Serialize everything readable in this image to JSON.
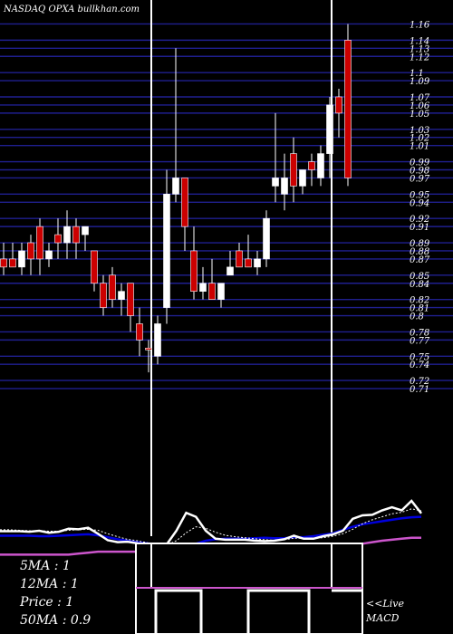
{
  "header": "NASDAQ OPXA bullkhan.com",
  "chart_data": {
    "type": "candlestick",
    "ylim": [
      0.7,
      1.165
    ],
    "y_ticks": [
      0.71,
      0.72,
      0.74,
      0.75,
      0.77,
      0.78,
      0.8,
      0.81,
      0.82,
      0.84,
      0.85,
      0.87,
      0.88,
      0.89,
      0.91,
      0.92,
      0.94,
      0.95,
      0.97,
      0.98,
      0.99,
      1.01,
      1.02,
      1.03,
      1.05,
      1.06,
      1.07,
      1.09,
      1.1,
      1.12,
      1.13,
      1.14,
      1.16
    ],
    "candles": [
      {
        "o": 0.87,
        "h": 0.89,
        "l": 0.85,
        "c": 0.86,
        "up": false
      },
      {
        "o": 0.87,
        "h": 0.89,
        "l": 0.86,
        "c": 0.86,
        "up": false
      },
      {
        "o": 0.86,
        "h": 0.89,
        "l": 0.85,
        "c": 0.88,
        "up": true
      },
      {
        "o": 0.89,
        "h": 0.9,
        "l": 0.85,
        "c": 0.87,
        "up": false
      },
      {
        "o": 0.91,
        "h": 0.92,
        "l": 0.85,
        "c": 0.87,
        "up": false
      },
      {
        "o": 0.87,
        "h": 0.89,
        "l": 0.86,
        "c": 0.88,
        "up": true
      },
      {
        "o": 0.9,
        "h": 0.92,
        "l": 0.87,
        "c": 0.89,
        "up": false
      },
      {
        "o": 0.89,
        "h": 0.93,
        "l": 0.87,
        "c": 0.91,
        "up": true
      },
      {
        "o": 0.91,
        "h": 0.92,
        "l": 0.87,
        "c": 0.89,
        "up": false
      },
      {
        "o": 0.9,
        "h": 0.91,
        "l": 0.88,
        "c": 0.91,
        "up": true
      },
      {
        "o": 0.88,
        "h": 0.88,
        "l": 0.83,
        "c": 0.84,
        "up": false
      },
      {
        "o": 0.84,
        "h": 0.85,
        "l": 0.8,
        "c": 0.81,
        "up": false
      },
      {
        "o": 0.85,
        "h": 0.86,
        "l": 0.81,
        "c": 0.82,
        "up": false
      },
      {
        "o": 0.83,
        "h": 0.84,
        "l": 0.8,
        "c": 0.82,
        "up": true
      },
      {
        "o": 0.84,
        "h": 0.84,
        "l": 0.78,
        "c": 0.8,
        "up": false
      },
      {
        "o": 0.79,
        "h": 0.81,
        "l": 0.75,
        "c": 0.77,
        "up": false
      },
      {
        "o": 0.76,
        "h": 0.77,
        "l": 0.73,
        "c": 0.76,
        "up": false
      },
      {
        "o": 0.75,
        "h": 0.8,
        "l": 0.74,
        "c": 0.79,
        "up": true
      },
      {
        "o": 0.81,
        "h": 0.98,
        "l": 0.79,
        "c": 0.95,
        "up": true
      },
      {
        "o": 0.95,
        "h": 1.13,
        "l": 0.94,
        "c": 0.97,
        "up": true
      },
      {
        "o": 0.97,
        "h": 0.97,
        "l": 0.88,
        "c": 0.91,
        "up": false
      },
      {
        "o": 0.88,
        "h": 0.91,
        "l": 0.82,
        "c": 0.83,
        "up": false
      },
      {
        "o": 0.84,
        "h": 0.86,
        "l": 0.82,
        "c": 0.83,
        "up": true
      },
      {
        "o": 0.84,
        "h": 0.87,
        "l": 0.82,
        "c": 0.82,
        "up": false
      },
      {
        "o": 0.82,
        "h": 0.84,
        "l": 0.81,
        "c": 0.84,
        "up": true
      },
      {
        "o": 0.85,
        "h": 0.88,
        "l": 0.85,
        "c": 0.86,
        "up": true
      },
      {
        "o": 0.88,
        "h": 0.89,
        "l": 0.86,
        "c": 0.86,
        "up": false
      },
      {
        "o": 0.87,
        "h": 0.9,
        "l": 0.86,
        "c": 0.86,
        "up": false
      },
      {
        "o": 0.86,
        "h": 0.88,
        "l": 0.85,
        "c": 0.87,
        "up": true
      },
      {
        "o": 0.87,
        "h": 0.93,
        "l": 0.86,
        "c": 0.92,
        "up": true
      },
      {
        "o": 0.96,
        "h": 1.05,
        "l": 0.94,
        "c": 0.97,
        "up": true
      },
      {
        "o": 0.97,
        "h": 1.0,
        "l": 0.93,
        "c": 0.95,
        "up": true
      },
      {
        "o": 1.0,
        "h": 1.02,
        "l": 0.94,
        "c": 0.96,
        "up": false
      },
      {
        "o": 0.96,
        "h": 0.98,
        "l": 0.95,
        "c": 0.98,
        "up": true
      },
      {
        "o": 0.99,
        "h": 1.0,
        "l": 0.96,
        "c": 0.98,
        "up": false
      },
      {
        "o": 0.97,
        "h": 1.01,
        "l": 0.96,
        "c": 1.0,
        "up": true
      },
      {
        "o": 1.06,
        "h": 1.07,
        "l": 0.97,
        "c": 1.0,
        "up": true
      },
      {
        "o": 1.07,
        "h": 1.08,
        "l": 1.02,
        "c": 1.05,
        "up": false
      },
      {
        "o": 1.14,
        "h": 1.16,
        "l": 0.96,
        "c": 0.97,
        "up": false
      }
    ],
    "macd": {
      "macd_line": [
        -1.05,
        -1.05,
        -1.05,
        -1.1,
        -1.0,
        -1.2,
        -1.1,
        -0.8,
        -0.85,
        -0.7,
        -1.3,
        -1.95,
        -2.15,
        -2.1,
        -2.25,
        -2.55,
        -2.65,
        -2.4,
        -1.0,
        0.8,
        0.4,
        -1.0,
        -1.8,
        -1.9,
        -1.9,
        -1.9,
        -2.0,
        -2.05,
        -2.0,
        -1.85,
        -1.5,
        -1.8,
        -1.8,
        -1.55,
        -1.35,
        -1.0,
        0.2,
        0.55,
        0.6,
        1.05,
        1.35,
        1.05,
        2.0,
        0.75
      ],
      "signal_line": [
        -0.9,
        -0.9,
        -0.95,
        -1.0,
        -1.0,
        -1.05,
        -1.05,
        -0.95,
        -0.9,
        -0.85,
        -0.95,
        -1.3,
        -1.6,
        -1.85,
        -2.0,
        -2.2,
        -2.4,
        -2.45,
        -2.0,
        -1.2,
        -0.6,
        -0.75,
        -1.15,
        -1.45,
        -1.6,
        -1.7,
        -1.8,
        -1.9,
        -1.95,
        -1.9,
        -1.75,
        -1.75,
        -1.75,
        -1.7,
        -1.55,
        -1.3,
        -0.85,
        -0.3,
        0.1,
        0.4,
        0.7,
        0.85,
        1.2,
        1.0
      ],
      "histogram": [
        -1.5,
        -1.5,
        -1.5,
        -1.5,
        -1.55,
        -1.55,
        -1.5,
        -1.45,
        -1.4,
        -1.35,
        -1.45,
        -1.65,
        -1.85,
        -2.0,
        -2.15,
        -2.25,
        -2.4,
        -2.5,
        -2.6,
        -2.6,
        -2.3,
        -2.0,
        -1.85,
        -1.8,
        -1.8,
        -1.8,
        -1.75,
        -1.7,
        -1.75,
        -1.75,
        -1.65,
        -1.65,
        -1.55,
        -1.4,
        -1.25,
        -0.9,
        -0.6,
        -0.35,
        -0.2,
        -0.05,
        0.1,
        0.25,
        0.35,
        0.4
      ],
      "baseline": [
        -3.4,
        -3.4,
        -3.4,
        -3.4,
        -3.4,
        -3.4,
        -3.4,
        -3.4,
        -3.3,
        -3.2,
        -3.1,
        -3.1,
        -3.1,
        -3.1,
        -3.1,
        -3.1,
        -3.1,
        -3.05,
        -3.0,
        -3.0,
        -3.0,
        -3.0,
        -2.95,
        -2.95,
        -2.9,
        -2.85,
        -2.85,
        -2.85,
        -2.8,
        -2.8,
        -2.8,
        -2.75,
        -2.75,
        -2.75,
        -2.7,
        -2.6,
        -2.45,
        -2.3,
        -2.15,
        -2.0,
        -1.9,
        -1.8,
        -1.7,
        -1.7
      ]
    }
  },
  "stats": {
    "ma5": "5MA : 1",
    "ma12": "12MA : 1",
    "price": "Price   : 1",
    "ma50": "50MA : 0.9"
  },
  "macd_label_1": "<<Live",
  "macd_label_2": "MACD",
  "colors": {
    "up": "#ffffff",
    "down": "#cc0000",
    "grid": "#1f1f8f",
    "macd_fast": "#ffffff",
    "macd_slow": "#0000dd",
    "macd_base": "#cc55cc"
  }
}
